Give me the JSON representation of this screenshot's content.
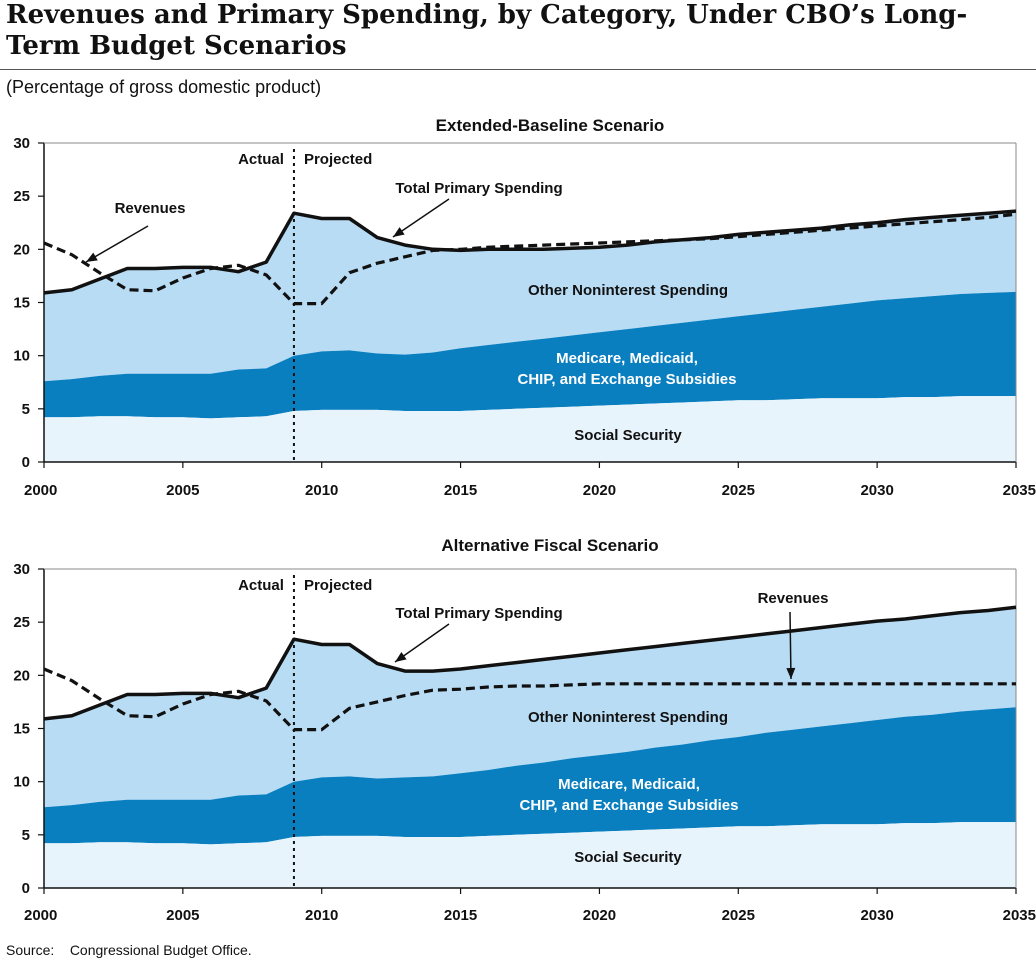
{
  "title": "Revenues and Primary Spending, by Category, Under CBO’s Long-Term Budget Scenarios",
  "subtitle": "(Percentage of gross domestic product)",
  "source_label": "Source:",
  "source_text": "Congressional Budget Office.",
  "colors": {
    "social_security": "#e8f4fc",
    "health": "#0a7fc0",
    "other": "#b8dcf4",
    "line": "#111111"
  },
  "chart_data": [
    {
      "type": "area",
      "title": "Extended-Baseline Scenario",
      "xlabel": "",
      "ylabel": "",
      "xlim": [
        2000,
        2035
      ],
      "ylim": [
        0,
        30
      ],
      "x_ticks": [
        2000,
        2005,
        2010,
        2015,
        2020,
        2025,
        2030,
        2035
      ],
      "y_ticks": [
        0,
        5,
        10,
        15,
        20,
        25,
        30
      ],
      "divider_year": 2009,
      "divider_labels": {
        "left": "Actual",
        "right": "Projected"
      },
      "annotations": {
        "revenues": "Revenues",
        "total_primary": "Total Primary Spending",
        "other_label": "Other Noninterest Spending",
        "health_label_1": "Medicare, Medicaid,",
        "health_label_2": "CHIP, and Exchange Subsidies",
        "ss_label": "Social Security"
      },
      "x": [
        2000,
        2001,
        2002,
        2003,
        2004,
        2005,
        2006,
        2007,
        2008,
        2009,
        2010,
        2011,
        2012,
        2013,
        2014,
        2015,
        2016,
        2017,
        2018,
        2019,
        2020,
        2021,
        2022,
        2023,
        2024,
        2025,
        2026,
        2027,
        2028,
        2029,
        2030,
        2031,
        2032,
        2033,
        2034,
        2035
      ],
      "series": [
        {
          "name": "Social Security",
          "values": [
            4.2,
            4.2,
            4.3,
            4.3,
            4.2,
            4.2,
            4.1,
            4.2,
            4.3,
            4.8,
            4.9,
            4.9,
            4.9,
            4.8,
            4.8,
            4.8,
            4.9,
            5.0,
            5.1,
            5.2,
            5.3,
            5.4,
            5.5,
            5.6,
            5.7,
            5.8,
            5.8,
            5.9,
            6.0,
            6.0,
            6.0,
            6.1,
            6.1,
            6.2,
            6.2,
            6.2
          ]
        },
        {
          "name": "Medicare, Medicaid, CHIP, and Exchange Subsidies",
          "values": [
            7.6,
            7.8,
            8.1,
            8.3,
            8.3,
            8.3,
            8.3,
            8.7,
            8.8,
            10.0,
            10.4,
            10.5,
            10.2,
            10.1,
            10.3,
            10.7,
            11.0,
            11.3,
            11.6,
            11.9,
            12.2,
            12.5,
            12.8,
            13.1,
            13.4,
            13.7,
            14.0,
            14.3,
            14.6,
            14.9,
            15.2,
            15.4,
            15.6,
            15.8,
            15.9,
            16.0
          ]
        },
        {
          "name": "Total Primary Spending",
          "values": [
            15.9,
            16.2,
            17.2,
            18.2,
            18.2,
            18.3,
            18.3,
            17.9,
            18.8,
            23.4,
            22.9,
            22.9,
            21.1,
            20.4,
            20.0,
            19.9,
            20.0,
            20.0,
            20.0,
            20.1,
            20.2,
            20.4,
            20.7,
            20.9,
            21.1,
            21.4,
            21.6,
            21.8,
            22.0,
            22.3,
            22.5,
            22.8,
            23.0,
            23.2,
            23.4,
            23.6
          ]
        },
        {
          "name": "Revenues",
          "values": [
            20.6,
            19.5,
            17.8,
            16.2,
            16.1,
            17.3,
            18.2,
            18.5,
            17.6,
            14.9,
            14.9,
            17.8,
            18.7,
            19.3,
            19.9,
            20.0,
            20.2,
            20.3,
            20.4,
            20.5,
            20.6,
            20.7,
            20.8,
            20.9,
            21.0,
            21.2,
            21.4,
            21.6,
            21.8,
            22.0,
            22.2,
            22.4,
            22.6,
            22.8,
            23.0,
            23.3
          ]
        }
      ]
    },
    {
      "type": "area",
      "title": "Alternative Fiscal Scenario",
      "xlabel": "",
      "ylabel": "",
      "xlim": [
        2000,
        2035
      ],
      "ylim": [
        0,
        30
      ],
      "x_ticks": [
        2000,
        2005,
        2010,
        2015,
        2020,
        2025,
        2030,
        2035
      ],
      "y_ticks": [
        0,
        5,
        10,
        15,
        20,
        25,
        30
      ],
      "divider_year": 2009,
      "divider_labels": {
        "left": "Actual",
        "right": "Projected"
      },
      "annotations": {
        "revenues": "Revenues",
        "total_primary": "Total Primary Spending",
        "other_label": "Other Noninterest Spending",
        "health_label_1": "Medicare, Medicaid,",
        "health_label_2": "CHIP, and Exchange Subsidies",
        "ss_label": "Social Security"
      },
      "x": [
        2000,
        2001,
        2002,
        2003,
        2004,
        2005,
        2006,
        2007,
        2008,
        2009,
        2010,
        2011,
        2012,
        2013,
        2014,
        2015,
        2016,
        2017,
        2018,
        2019,
        2020,
        2021,
        2022,
        2023,
        2024,
        2025,
        2026,
        2027,
        2028,
        2029,
        2030,
        2031,
        2032,
        2033,
        2034,
        2035
      ],
      "series": [
        {
          "name": "Social Security",
          "values": [
            4.2,
            4.2,
            4.3,
            4.3,
            4.2,
            4.2,
            4.1,
            4.2,
            4.3,
            4.8,
            4.9,
            4.9,
            4.9,
            4.8,
            4.8,
            4.8,
            4.9,
            5.0,
            5.1,
            5.2,
            5.3,
            5.4,
            5.5,
            5.6,
            5.7,
            5.8,
            5.8,
            5.9,
            6.0,
            6.0,
            6.0,
            6.1,
            6.1,
            6.2,
            6.2,
            6.2
          ]
        },
        {
          "name": "Medicare, Medicaid, CHIP, and Exchange Subsidies",
          "values": [
            7.6,
            7.8,
            8.1,
            8.3,
            8.3,
            8.3,
            8.3,
            8.7,
            8.8,
            10.0,
            10.4,
            10.5,
            10.3,
            10.4,
            10.5,
            10.8,
            11.1,
            11.5,
            11.8,
            12.2,
            12.5,
            12.8,
            13.2,
            13.5,
            13.9,
            14.2,
            14.6,
            14.9,
            15.2,
            15.5,
            15.8,
            16.1,
            16.3,
            16.6,
            16.8,
            17.0
          ]
        },
        {
          "name": "Total Primary Spending",
          "values": [
            15.9,
            16.2,
            17.2,
            18.2,
            18.2,
            18.3,
            18.3,
            17.9,
            18.8,
            23.4,
            22.9,
            22.9,
            21.1,
            20.4,
            20.4,
            20.6,
            20.9,
            21.2,
            21.5,
            21.8,
            22.1,
            22.4,
            22.7,
            23.0,
            23.3,
            23.6,
            23.9,
            24.2,
            24.5,
            24.8,
            25.1,
            25.3,
            25.6,
            25.9,
            26.1,
            26.4
          ]
        },
        {
          "name": "Revenues",
          "values": [
            20.6,
            19.5,
            17.8,
            16.2,
            16.1,
            17.3,
            18.2,
            18.5,
            17.6,
            14.9,
            14.9,
            16.9,
            17.5,
            18.1,
            18.6,
            18.7,
            18.9,
            19.0,
            19.0,
            19.1,
            19.2,
            19.2,
            19.2,
            19.2,
            19.2,
            19.2,
            19.2,
            19.2,
            19.2,
            19.2,
            19.2,
            19.2,
            19.2,
            19.2,
            19.2,
            19.2
          ]
        }
      ]
    }
  ]
}
